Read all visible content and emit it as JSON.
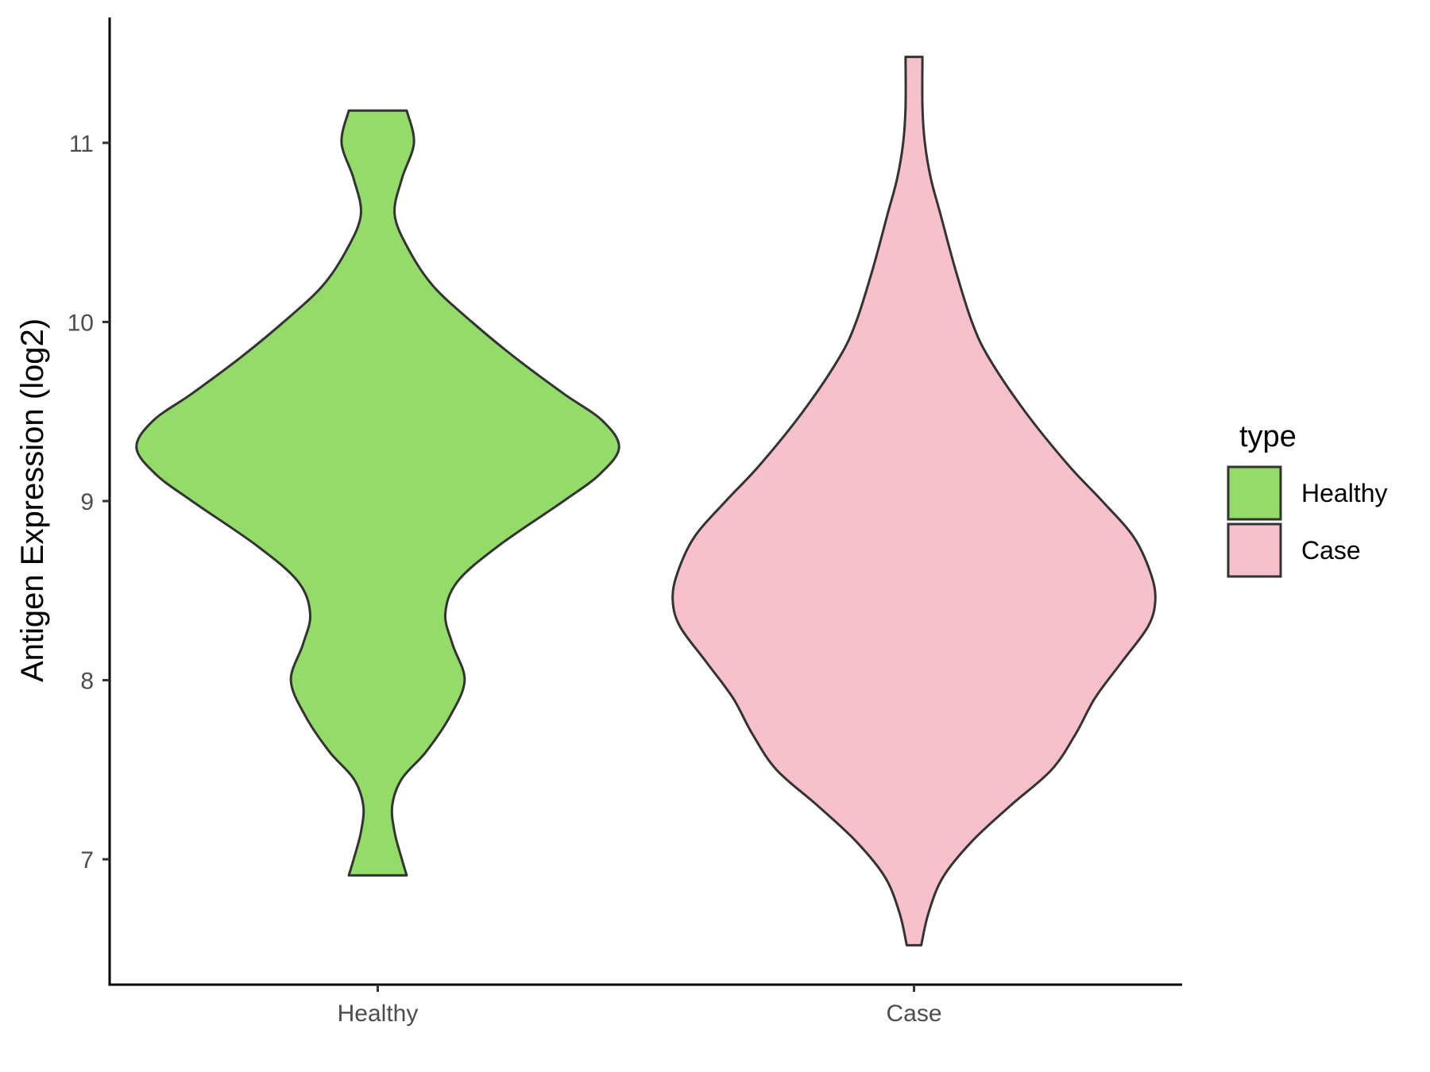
{
  "chart_data": {
    "type": "violin",
    "ylabel": "Antigen Expression (log2)",
    "xlabel": "",
    "ylim": [
      6.3,
      11.7
    ],
    "yticks": [
      7,
      8,
      9,
      10,
      11
    ],
    "categories": [
      "Healthy",
      "Case"
    ],
    "legend": {
      "title": "type",
      "position": "right",
      "entries": [
        {
          "label": "Healthy",
          "color": "#93dc6a"
        },
        {
          "label": "Case",
          "color": "#f8c0cb"
        }
      ]
    },
    "grid": false,
    "series": [
      {
        "category": "Healthy",
        "color": "#93dc6a",
        "min": 6.91,
        "max": 11.18,
        "density_profile": [
          [
            6.91,
            0.12
          ],
          [
            7.0,
            0.1
          ],
          [
            7.15,
            0.07
          ],
          [
            7.3,
            0.06
          ],
          [
            7.45,
            0.1
          ],
          [
            7.6,
            0.2
          ],
          [
            7.8,
            0.3
          ],
          [
            8.0,
            0.36
          ],
          [
            8.2,
            0.31
          ],
          [
            8.37,
            0.28
          ],
          [
            8.55,
            0.33
          ],
          [
            8.75,
            0.5
          ],
          [
            9.0,
            0.77
          ],
          [
            9.15,
            0.92
          ],
          [
            9.3,
            1.0
          ],
          [
            9.45,
            0.93
          ],
          [
            9.6,
            0.77
          ],
          [
            9.8,
            0.57
          ],
          [
            10.0,
            0.39
          ],
          [
            10.2,
            0.23
          ],
          [
            10.4,
            0.13
          ],
          [
            10.6,
            0.07
          ],
          [
            10.8,
            0.1
          ],
          [
            11.0,
            0.15
          ],
          [
            11.18,
            0.12
          ]
        ]
      },
      {
        "category": "Case",
        "color": "#f8c0cb",
        "min": 6.52,
        "max": 11.48,
        "density_profile": [
          [
            6.52,
            0.03
          ],
          [
            6.7,
            0.06
          ],
          [
            6.9,
            0.12
          ],
          [
            7.1,
            0.24
          ],
          [
            7.3,
            0.4
          ],
          [
            7.5,
            0.57
          ],
          [
            7.7,
            0.67
          ],
          [
            7.9,
            0.75
          ],
          [
            8.1,
            0.86
          ],
          [
            8.3,
            0.97
          ],
          [
            8.45,
            1.0
          ],
          [
            8.6,
            0.98
          ],
          [
            8.8,
            0.91
          ],
          [
            9.0,
            0.78
          ],
          [
            9.2,
            0.64
          ],
          [
            9.5,
            0.46
          ],
          [
            9.8,
            0.31
          ],
          [
            10.0,
            0.24
          ],
          [
            10.3,
            0.17
          ],
          [
            10.6,
            0.11
          ],
          [
            10.8,
            0.07
          ],
          [
            11.0,
            0.045
          ],
          [
            11.2,
            0.035
          ],
          [
            11.48,
            0.035
          ]
        ]
      }
    ]
  }
}
